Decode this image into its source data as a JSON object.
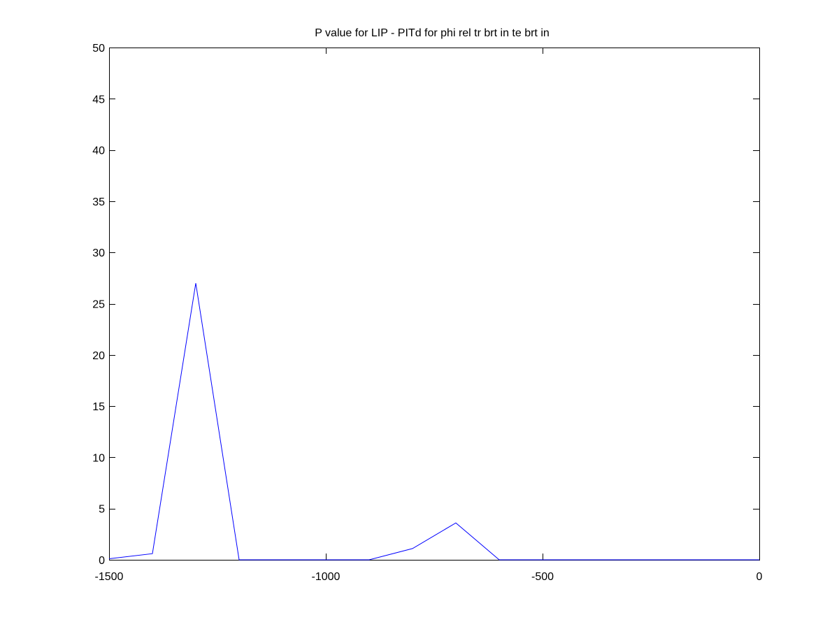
{
  "chart_data": {
    "type": "line",
    "title": "P value for LIP - PITd for phi rel tr brt in te brt in",
    "xlabel": "",
    "ylabel": "",
    "xlim": [
      -1500,
      0
    ],
    "ylim": [
      0,
      50
    ],
    "xticks": [
      -1500,
      -1000,
      -500,
      0
    ],
    "xtick_labels": [
      "-1500",
      "-1000",
      "-500",
      "0"
    ],
    "yticks": [
      0,
      5,
      10,
      15,
      20,
      25,
      30,
      35,
      40,
      45,
      50
    ],
    "ytick_labels": [
      "0",
      "5",
      "10",
      "15",
      "20",
      "25",
      "30",
      "35",
      "40",
      "45",
      "50"
    ],
    "grid": false,
    "series": [
      {
        "color": "#0000ff",
        "x": [
          -1500,
          -1400,
          -1300,
          -1200,
          -1100,
          -1000,
          -900,
          -800,
          -700,
          -600,
          -500,
          -400,
          -300,
          -200,
          -100,
          0
        ],
        "y": [
          0.1,
          0.6,
          27,
          0,
          0,
          0,
          0,
          1.1,
          3.6,
          0,
          0,
          0,
          0,
          0,
          0,
          0
        ]
      }
    ]
  }
}
